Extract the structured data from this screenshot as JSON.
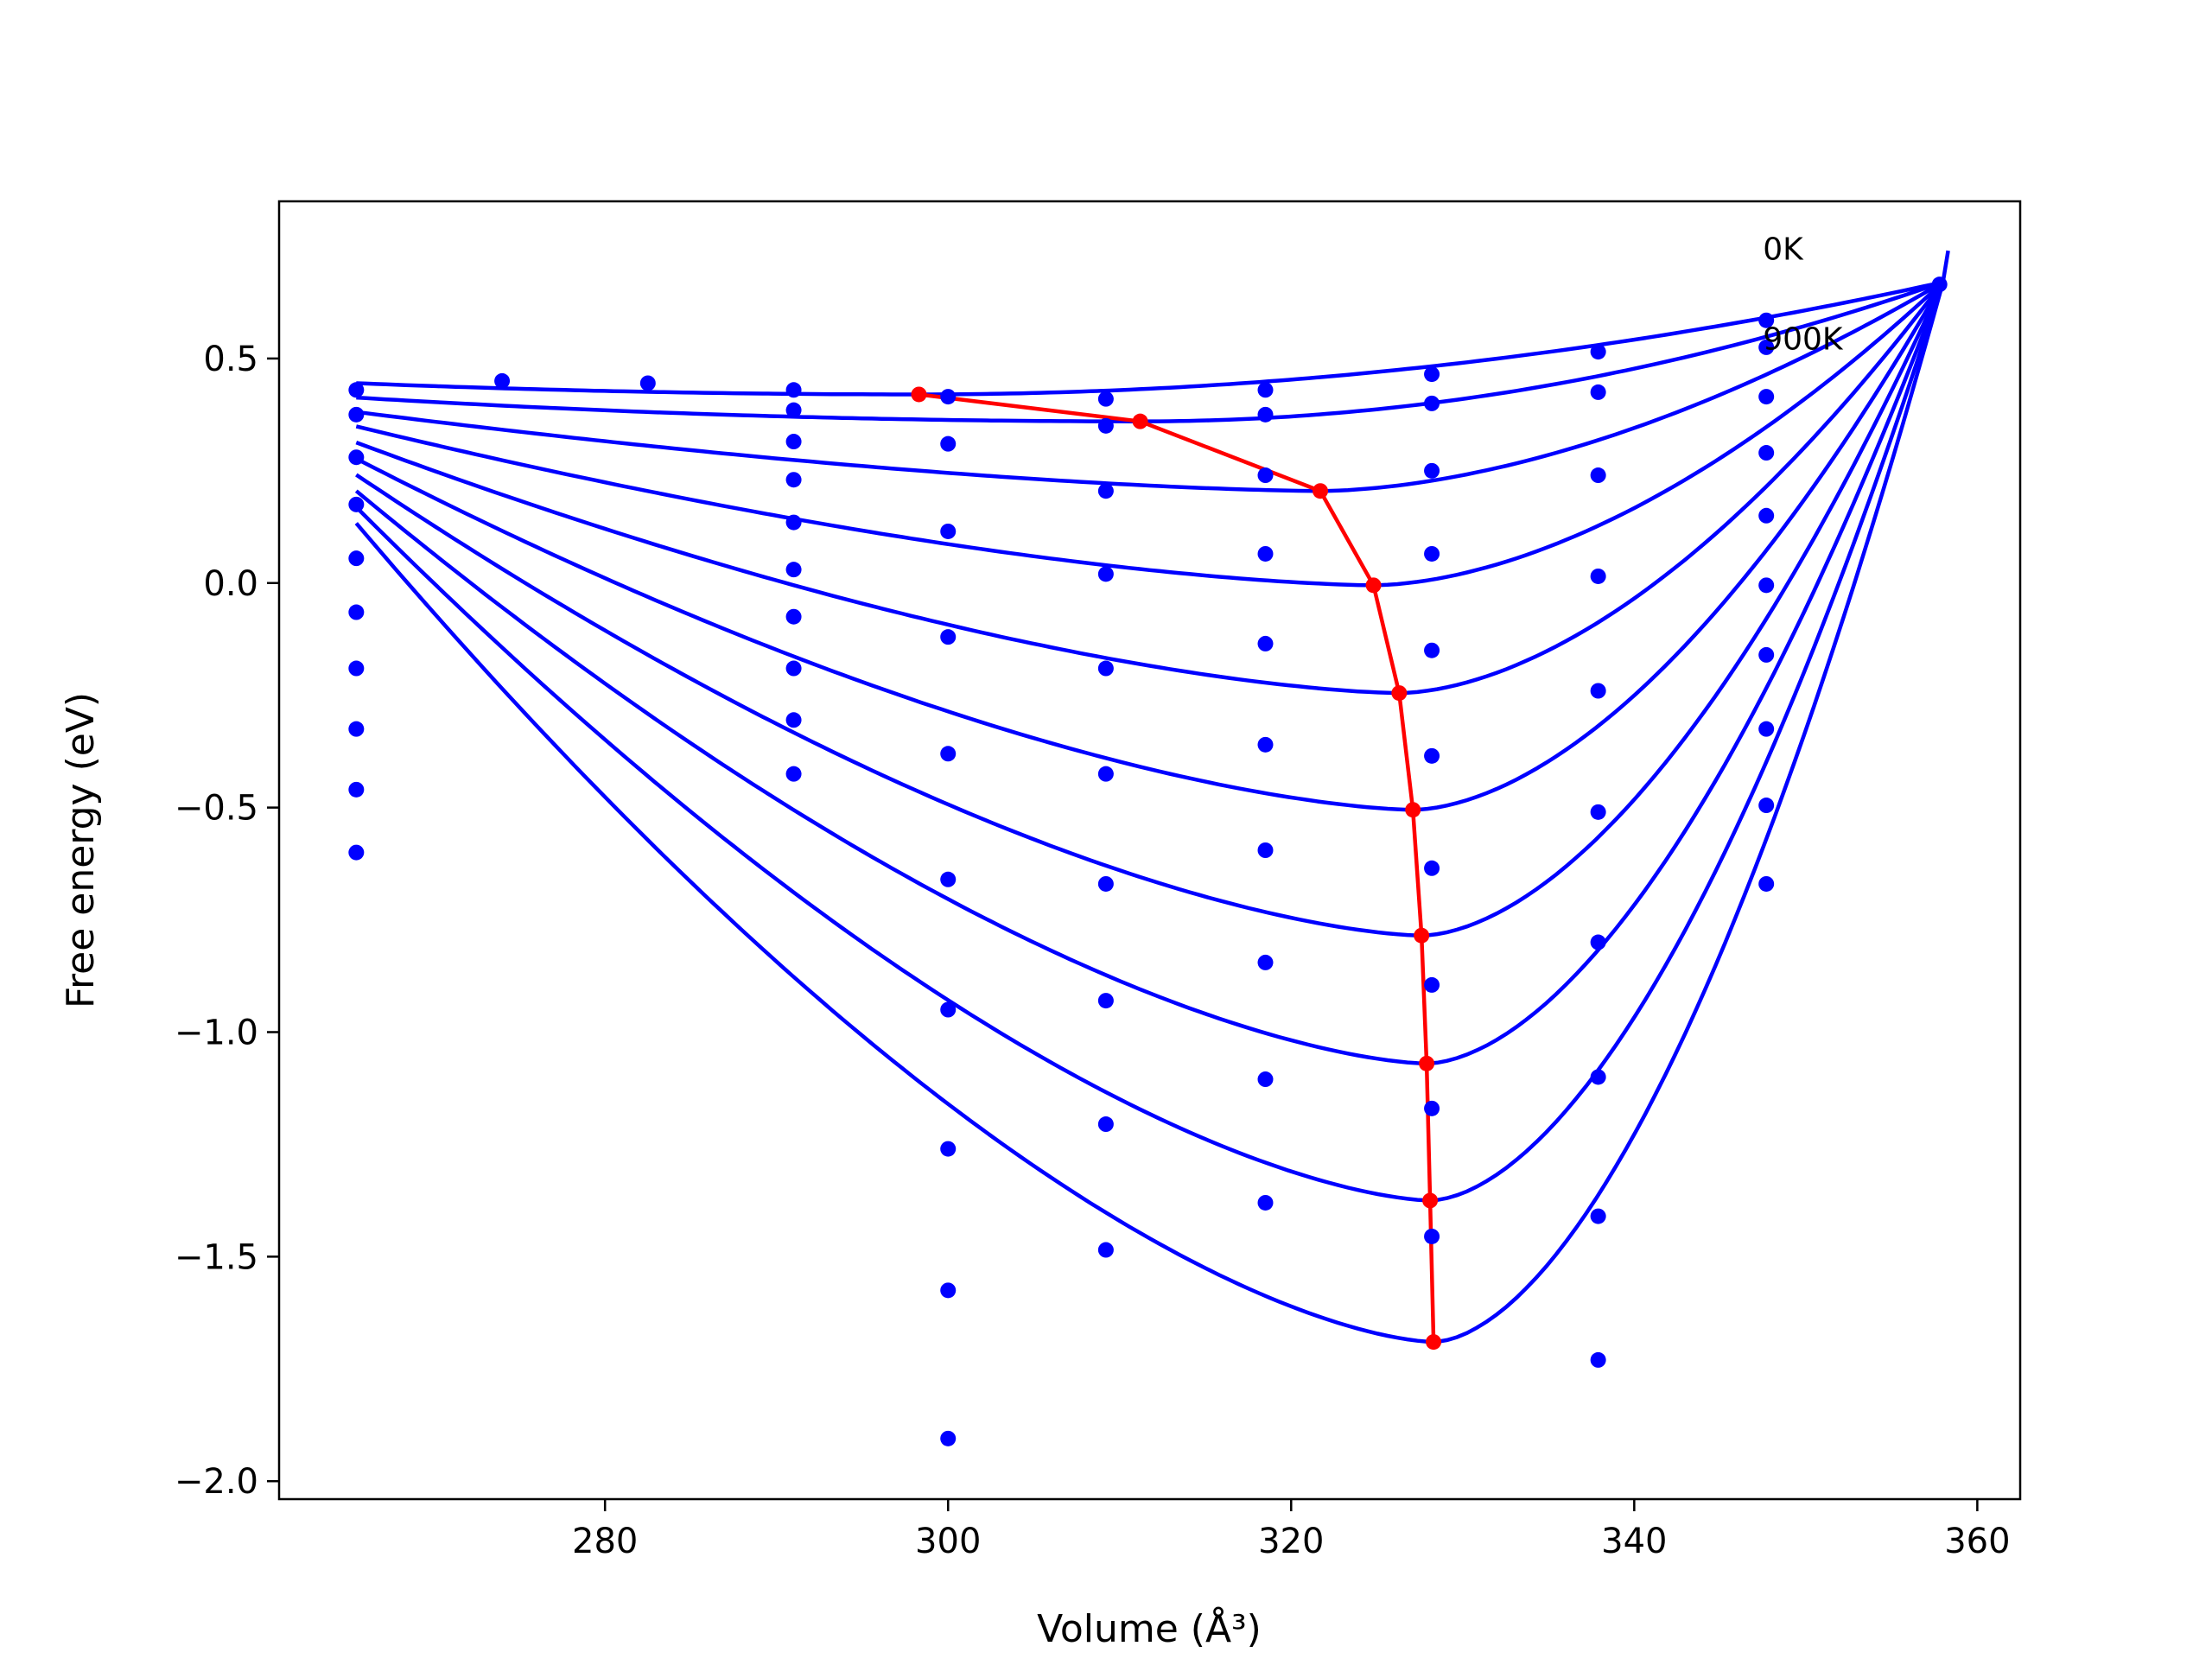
{
  "chart_data": {
    "type": "scatter",
    "title": "",
    "xlabel": "Volume (Å³)",
    "ylabel": "Free energy (eV)",
    "xlim": [
      261,
      362.5
    ],
    "ylim": [
      -2.04,
      0.85
    ],
    "x_ticks": [
      280,
      300,
      320,
      340,
      360
    ],
    "x_tick_labels": [
      "280",
      "300",
      "320",
      "340",
      "360"
    ],
    "y_ticks": [
      -2.0,
      -1.5,
      -1.0,
      -0.5,
      0.0,
      0.5
    ],
    "y_tick_labels": [
      "−2.0",
      "−1.5",
      "−1.0",
      "−0.5",
      "0.0",
      "0.5"
    ],
    "grid": false,
    "legend": "none",
    "annotations": [
      {
        "text": "0K",
        "x": 347.5,
        "y": 0.72
      },
      {
        "text": "900K",
        "x": 347.5,
        "y": 0.52
      }
    ],
    "colors": {
      "fit": "#0000ff",
      "points": "#0000ff",
      "minimum": "#ff0000"
    },
    "fit_curve_xrange": [
      265.5,
      358
    ],
    "fit_curves": [
      {
        "v0": 298.3,
        "e0": 0.42
      },
      {
        "v0": 311.2,
        "e0": 0.36
      },
      {
        "v0": 321.7,
        "e0": 0.205
      },
      {
        "v0": 324.8,
        "e0": -0.005
      },
      {
        "v0": 326.3,
        "e0": -0.245
      },
      {
        "v0": 327.1,
        "e0": -0.505
      },
      {
        "v0": 327.6,
        "e0": -0.785
      },
      {
        "v0": 327.9,
        "e0": -1.07
      },
      {
        "v0": 328.1,
        "e0": -1.375
      },
      {
        "v0": 328.3,
        "e0": -1.69
      }
    ],
    "series": [
      {
        "role": "data-points",
        "points": [
          [
            265.5,
            0.43
          ],
          [
            265.5,
            0.375
          ],
          [
            265.5,
            0.28
          ],
          [
            265.5,
            0.175
          ],
          [
            265.5,
            0.055
          ],
          [
            265.5,
            -0.065
          ],
          [
            265.5,
            -0.19
          ],
          [
            265.5,
            -0.325
          ],
          [
            265.5,
            -0.46
          ],
          [
            265.5,
            -0.6
          ],
          [
            274.0,
            0.45
          ],
          [
            282.5,
            0.445
          ],
          [
            291.0,
            0.43
          ],
          [
            291.0,
            0.385
          ],
          [
            291.0,
            0.315
          ],
          [
            291.0,
            0.23
          ],
          [
            291.0,
            0.135
          ],
          [
            291.0,
            0.03
          ],
          [
            291.0,
            -0.075
          ],
          [
            291.0,
            -0.19
          ],
          [
            291.0,
            -0.305
          ],
          [
            291.0,
            -0.425
          ],
          [
            300.0,
            0.415
          ],
          [
            300.0,
            0.31
          ],
          [
            300.0,
            0.115
          ],
          [
            300.0,
            -0.12
          ],
          [
            300.0,
            -0.38
          ],
          [
            300.0,
            -0.66
          ],
          [
            300.0,
            -0.95
          ],
          [
            300.0,
            -1.26
          ],
          [
            300.0,
            -1.575
          ],
          [
            300.0,
            -1.905
          ],
          [
            309.2,
            0.41
          ],
          [
            309.2,
            0.35
          ],
          [
            309.2,
            0.205
          ],
          [
            309.2,
            0.02
          ],
          [
            309.2,
            -0.19
          ],
          [
            309.2,
            -0.425
          ],
          [
            309.2,
            -0.67
          ],
          [
            309.2,
            -0.93
          ],
          [
            309.2,
            -1.205
          ],
          [
            309.2,
            -1.485
          ],
          [
            318.5,
            0.43
          ],
          [
            318.5,
            0.375
          ],
          [
            318.5,
            0.24
          ],
          [
            318.5,
            0.065
          ],
          [
            318.5,
            -0.135
          ],
          [
            318.5,
            -0.36
          ],
          [
            318.5,
            -0.595
          ],
          [
            318.5,
            -0.845
          ],
          [
            318.5,
            -1.105
          ],
          [
            318.5,
            -1.38
          ],
          [
            328.2,
            0.465
          ],
          [
            328.2,
            0.4
          ],
          [
            328.2,
            0.25
          ],
          [
            328.2,
            0.065
          ],
          [
            328.2,
            -0.15
          ],
          [
            328.2,
            -0.385
          ],
          [
            328.2,
            -0.635
          ],
          [
            328.2,
            -0.895
          ],
          [
            328.2,
            -1.17
          ],
          [
            328.2,
            -1.455
          ],
          [
            337.9,
            0.515
          ],
          [
            337.9,
            0.425
          ],
          [
            337.9,
            0.24
          ],
          [
            337.9,
            0.015
          ],
          [
            337.9,
            -0.24
          ],
          [
            337.9,
            -0.51
          ],
          [
            337.9,
            -0.8
          ],
          [
            337.9,
            -1.1
          ],
          [
            337.9,
            -1.41
          ],
          [
            337.9,
            -1.73
          ],
          [
            347.7,
            0.585
          ],
          [
            347.7,
            0.525
          ],
          [
            347.7,
            0.415
          ],
          [
            347.7,
            0.29
          ],
          [
            347.7,
            0.15
          ],
          [
            347.7,
            -0.005
          ],
          [
            347.7,
            -0.16
          ],
          [
            347.7,
            -0.325
          ],
          [
            347.7,
            -0.495
          ],
          [
            347.7,
            -0.67
          ],
          [
            357.8,
            0.665
          ]
        ]
      },
      {
        "role": "minimum-path",
        "points": [
          [
            298.3,
            0.42
          ],
          [
            311.2,
            0.36
          ],
          [
            321.7,
            0.205
          ],
          [
            324.8,
            -0.005
          ],
          [
            326.3,
            -0.245
          ],
          [
            327.1,
            -0.505
          ],
          [
            327.6,
            -0.785
          ],
          [
            327.9,
            -1.07
          ],
          [
            328.1,
            -1.375
          ],
          [
            328.3,
            -1.69
          ]
        ]
      }
    ]
  }
}
